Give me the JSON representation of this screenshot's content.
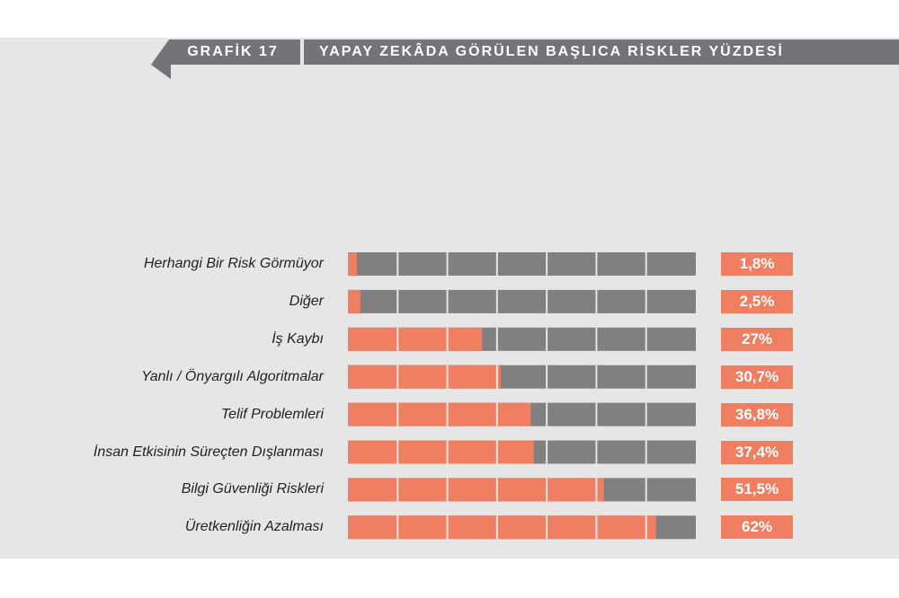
{
  "header": {
    "tag": "GRAFİK 17",
    "title": "YAPAY ZEKÂDA GÖRÜLEN BAŞLICA RİSKLER YÜZDESİ"
  },
  "colors": {
    "fill": "#f07e61",
    "track": "#808083",
    "panel": "#e6e6e7",
    "header": "#737477",
    "value_box": "#f07e61"
  },
  "chart_data": {
    "type": "bar",
    "orientation": "horizontal",
    "title": "YAPAY ZEKÂDA GÖRÜLEN BAŞLICA RİSKLER YÜZDESİ",
    "xlim": [
      0,
      70
    ],
    "segments": 7,
    "categories": [
      "Herhangi Bir Risk Görmüyor",
      "Diğer",
      "İş Kaybı",
      "Yanlı / Önyargılı Algoritmalar",
      "Telif Problemleri",
      "İnsan Etkisinin Süreçten Dışlanması",
      "Bilgi Güvenliği Riskleri",
      "Üretkenliğin Azalması"
    ],
    "values": [
      1.8,
      2.5,
      27,
      30.7,
      36.8,
      37.4,
      51.5,
      62
    ],
    "value_labels": [
      "1,8%",
      "2,5%",
      "27%",
      "30,7%",
      "36,8%",
      "37,4%",
      "51,5%",
      "62%"
    ]
  }
}
